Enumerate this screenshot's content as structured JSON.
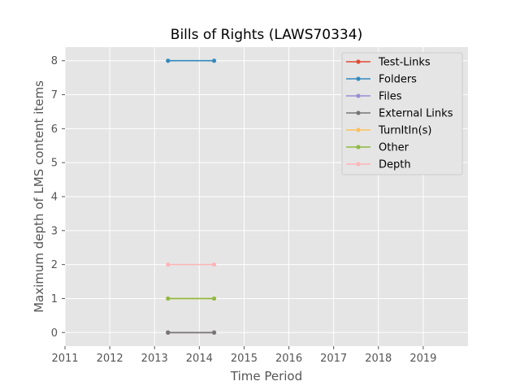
{
  "chart_data": {
    "type": "line",
    "title": "Bills of Rights (LAWS70334)",
    "xlabel": "Time Period",
    "ylabel": "Maximum depth of LMS content items",
    "xlim": [
      2011,
      2020
    ],
    "ylim": [
      -0.4,
      8.4
    ],
    "xticks": [
      2011,
      2012,
      2013,
      2014,
      2015,
      2016,
      2017,
      2018,
      2019
    ],
    "yticks": [
      0,
      1,
      2,
      3,
      4,
      5,
      6,
      7,
      8
    ],
    "grid": true,
    "legend_position": "top-right",
    "x": [
      2013.3,
      2014.33
    ],
    "series": [
      {
        "name": "Test-Links",
        "color": "#e24a33",
        "values": [
          0,
          0
        ]
      },
      {
        "name": "Folders",
        "color": "#348abd",
        "values": [
          8,
          8
        ]
      },
      {
        "name": "Files",
        "color": "#988ed5",
        "values": [
          0,
          0
        ]
      },
      {
        "name": "External Links",
        "color": "#777777",
        "values": [
          0,
          0
        ]
      },
      {
        "name": "TurnItIn(s)",
        "color": "#fbc15e",
        "values": [
          1,
          1
        ]
      },
      {
        "name": "Other",
        "color": "#8eba42",
        "values": [
          1,
          1
        ]
      },
      {
        "name": "Depth",
        "color": "#ffb5b8",
        "values": [
          2,
          2
        ]
      }
    ]
  }
}
